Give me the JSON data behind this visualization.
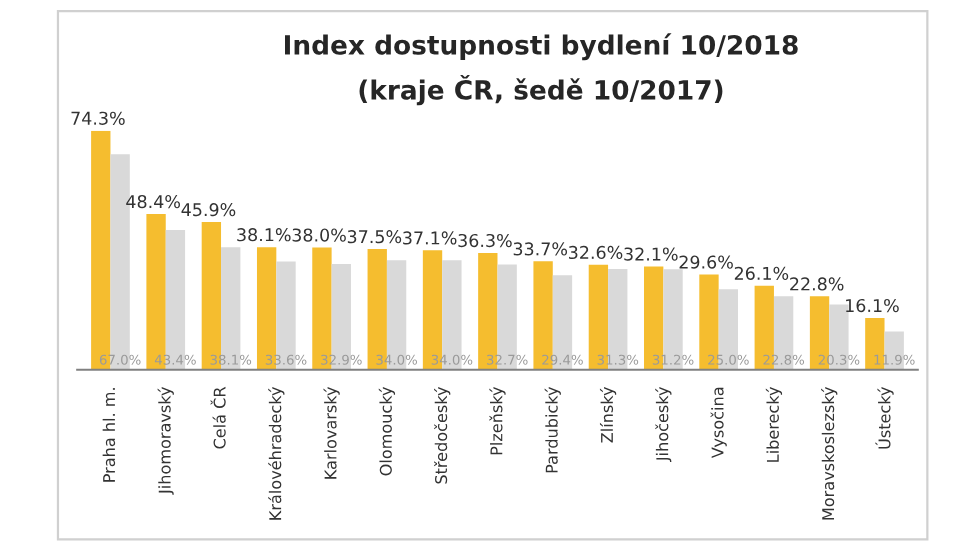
{
  "chart_data": {
    "type": "bar",
    "title": "Index dostupnosti bydlení 10/2018",
    "subtitle": "(kraje ČR, šedě 10/2017)",
    "categories": [
      "Praha hl. m.",
      "Jihomoravský",
      "Celá ČR",
      "Královéhradecký",
      "Karlovarský",
      "Olomoucký",
      "Středočeský",
      "Plzeňský",
      "Pardubický",
      "Zlínský",
      "Jihočeský",
      "Vysočina",
      "Liberecký",
      "Moravskoslezský",
      "Ústecký"
    ],
    "series": [
      {
        "color": "#f5bd2f",
        "values": [
          74.3,
          48.4,
          45.9,
          38.1,
          38.0,
          37.5,
          37.1,
          36.3,
          33.7,
          32.6,
          32.1,
          29.6,
          26.1,
          22.8,
          16.1
        ],
        "value_labels": [
          "74.3%",
          "48.4%",
          "45.9%",
          "38.1%",
          "38.0%",
          "37.5%",
          "37.1%",
          "36.3%",
          "33.7%",
          "32.6%",
          "32.1%",
          "29.6%",
          "26.1%",
          "22.8%",
          "16.1%"
        ]
      },
      {
        "color": "#d9d9d9",
        "values": [
          67.0,
          43.4,
          38.1,
          33.6,
          32.9,
          34.0,
          34.0,
          32.7,
          29.4,
          31.3,
          31.2,
          25.0,
          22.8,
          20.3,
          11.9
        ],
        "value_labels": [
          "67.0%",
          "43.4%",
          "38.1%",
          "33.6%",
          "32.9%",
          "34.0%",
          "34.0%",
          "32.7%",
          "29.4%",
          "31.3%",
          "31.2%",
          "25.0%",
          "22.8%",
          "20.3%",
          "11.9%"
        ]
      }
    ],
    "grid": false,
    "legend": false
  }
}
